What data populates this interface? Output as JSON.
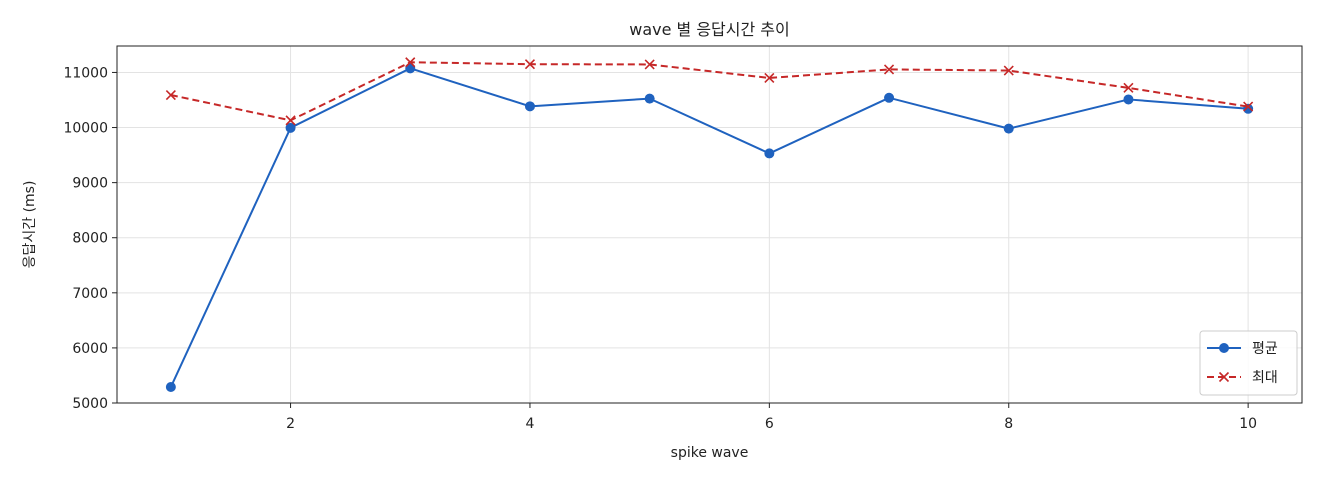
{
  "chart_data": {
    "type": "line",
    "title": "wave 별 응답시간 추이",
    "xlabel": "spike wave",
    "ylabel": "응답시간 (ms)",
    "x": [
      1,
      2,
      3,
      4,
      5,
      6,
      7,
      8,
      9,
      10
    ],
    "xticks": [
      2,
      4,
      6,
      8,
      10
    ],
    "yticks": [
      5000,
      6000,
      7000,
      8000,
      9000,
      10000,
      11000
    ],
    "xlim": [
      0.55,
      10.45
    ],
    "ylim": [
      5000,
      11480
    ],
    "grid": true,
    "legend_position": "lower-right",
    "series": [
      {
        "name": "평균",
        "values": [
          5290,
          9995,
          11075,
          10385,
          10525,
          9530,
          10540,
          9980,
          10510,
          10340
        ],
        "color": "#1f62bf",
        "marker": "circle",
        "linestyle": "solid"
      },
      {
        "name": "최대",
        "values": [
          10590,
          10130,
          11185,
          11150,
          11145,
          10900,
          11055,
          11035,
          10720,
          10380
        ],
        "color": "#c62828",
        "marker": "x",
        "linestyle": "dashed"
      }
    ]
  }
}
